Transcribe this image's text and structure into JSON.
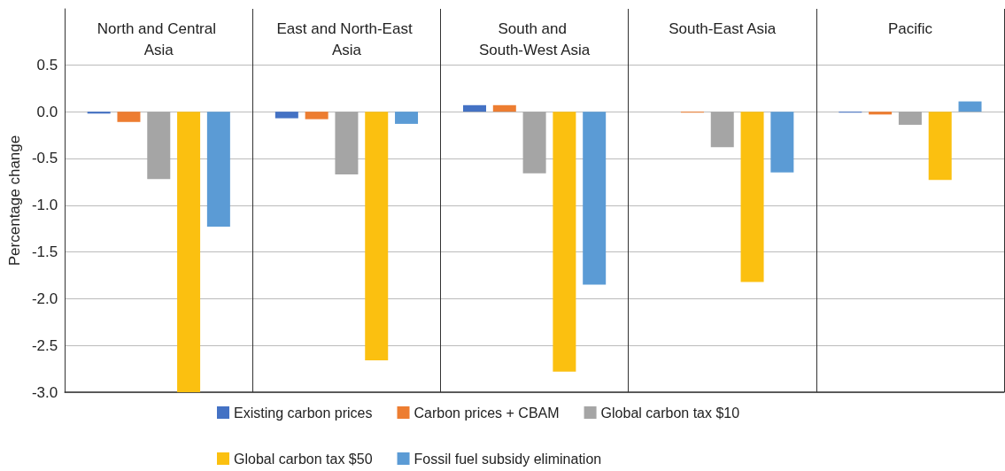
{
  "chart_data": {
    "type": "bar",
    "ylabel": "Percentage change",
    "categories": [
      "North and Central Asia",
      "East and North-East Asia",
      "South and South-West Asia",
      "South-East Asia",
      "Pacific"
    ],
    "series": [
      {
        "name": "Existing carbon prices",
        "color": "#4472c4",
        "values": [
          -0.02,
          -0.07,
          0.07,
          0.0,
          -0.01
        ]
      },
      {
        "name": "Carbon prices + CBAM",
        "color": "#ed7d31",
        "values": [
          -0.11,
          -0.08,
          0.07,
          -0.01,
          -0.03
        ]
      },
      {
        "name": "Global carbon tax $10",
        "color": "#a5a5a5",
        "values": [
          -0.72,
          -0.67,
          -0.66,
          -0.38,
          -0.14
        ]
      },
      {
        "name": "Global carbon tax $50",
        "color": "#fbc010",
        "values": [
          -3.0,
          -2.66,
          -2.78,
          -1.82,
          -0.73
        ]
      },
      {
        "name": "Fossil fuel subsidy elimination",
        "color": "#5b9bd5",
        "values": [
          -1.23,
          -0.13,
          -1.85,
          -0.65,
          0.11
        ]
      }
    ],
    "ylim": [
      -3.0,
      1.1
    ],
    "yticks": [
      {
        "value": -3,
        "label": "-3.0"
      },
      -2.5,
      {
        "value": -2,
        "label": "-2.0"
      },
      -1.5,
      {
        "value": -1,
        "label": "-1.0"
      },
      -0.5,
      {
        "value": 0,
        "label": "0.0"
      },
      0.5
    ],
    "grid": "y",
    "legend": "bottom"
  }
}
